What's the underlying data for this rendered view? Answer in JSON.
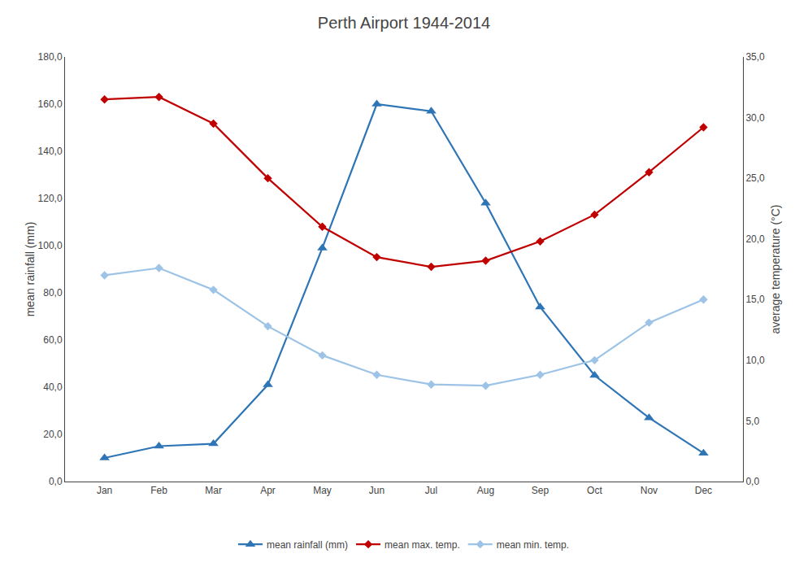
{
  "chart_data": {
    "type": "line",
    "title": "Perth Airport 1944-2014",
    "categories": [
      "Jan",
      "Feb",
      "Mar",
      "Apr",
      "May",
      "Jun",
      "Jul",
      "Aug",
      "Sep",
      "Oct",
      "Nov",
      "Dec"
    ],
    "ylabel": "mean rainfall (mm)",
    "y2label": "average temperature (°C)",
    "series": [
      {
        "name": "mean rainfall (mm)",
        "color": "#2e75b6",
        "marker": "triangle-up",
        "values": [
          10,
          15,
          16,
          41,
          99,
          160,
          157,
          118,
          74,
          45,
          27,
          12
        ]
      },
      {
        "name": "mean max. temp.",
        "color": "#c00000",
        "marker": "diamond",
        "axis": "y2",
        "values": [
          31.5,
          31.7,
          29.5,
          25.0,
          21.0,
          18.5,
          17.7,
          18.2,
          19.8,
          22.0,
          25.5,
          29.2
        ]
      },
      {
        "name": "mean min. temp.",
        "color": "#9dc3e6",
        "marker": "diamond",
        "axis": "y2",
        "values": [
          17.0,
          17.6,
          15.8,
          12.8,
          10.4,
          8.8,
          8.0,
          7.9,
          8.8,
          10.0,
          13.1,
          15.0
        ]
      }
    ],
    "ylim": [
      0,
      180
    ],
    "yticks": [
      {
        "value": 0,
        "label": "0,0"
      },
      {
        "value": 20,
        "label": "20,0"
      },
      {
        "value": 40,
        "label": "40,0"
      },
      {
        "value": 60,
        "label": "60,0"
      },
      {
        "value": 80,
        "label": "80,0"
      },
      {
        "value": 100,
        "label": "100,0"
      },
      {
        "value": 120,
        "label": "120,0"
      },
      {
        "value": 140,
        "label": "140,0"
      },
      {
        "value": 160,
        "label": "160,0"
      },
      {
        "value": 180,
        "label": "180,0"
      }
    ],
    "y2lim": [
      0,
      35
    ],
    "y2ticks": [
      {
        "value": 0,
        "label": "0,0"
      },
      {
        "value": 5,
        "label": "5,0"
      },
      {
        "value": 10,
        "label": "10,0"
      },
      {
        "value": 15,
        "label": "15,0"
      },
      {
        "value": 20,
        "label": "20,0"
      },
      {
        "value": 25,
        "label": "25,0"
      },
      {
        "value": 30,
        "label": "30,0"
      },
      {
        "value": 35,
        "label": "35,0"
      }
    ],
    "grid": false,
    "legend": "bottom"
  }
}
